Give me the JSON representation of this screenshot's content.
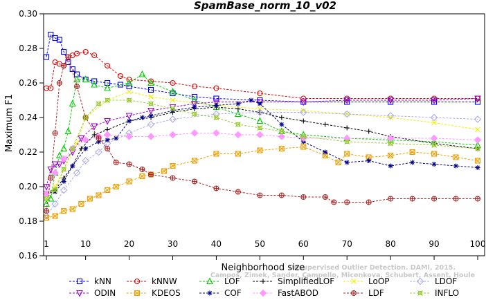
{
  "chart_data": {
    "type": "line",
    "title": "SpamBase_norm_10_v02",
    "xlabel": "Neighborhood size",
    "ylabel": "Maximum F1",
    "xlim": [
      1,
      100
    ],
    "ylim": [
      0.16,
      0.3
    ],
    "xticks": [
      1,
      10,
      20,
      30,
      40,
      50,
      60,
      70,
      80,
      90,
      100
    ],
    "yticks": [
      0.16,
      0.18,
      0.2,
      0.22,
      0.24,
      0.26,
      0.28,
      0.3
    ],
    "ytick_labels": [
      "0.16",
      "0.18",
      "0.20",
      "0.22",
      "0.24",
      "0.26",
      "0.28",
      "0.30"
    ],
    "grid": false,
    "legend_position": "bottom",
    "watermark": [
      "Campos, Zimek, Sander, Campello, Micenkova, Schubert, Assent, Houle",
      "Unsupervised Outlier Detection. DAMI, 2015."
    ],
    "series": [
      {
        "name": "kNN",
        "color": "#0000ee",
        "marker": "square",
        "x": [
          1,
          2,
          3,
          4,
          5,
          6,
          7,
          8,
          10,
          12,
          15,
          18,
          20,
          25,
          30,
          35,
          40,
          50,
          60,
          70,
          80,
          90,
          100
        ],
        "values": [
          0.275,
          0.288,
          0.286,
          0.285,
          0.278,
          0.272,
          0.268,
          0.265,
          0.262,
          0.261,
          0.26,
          0.259,
          0.258,
          0.256,
          0.254,
          0.252,
          0.251,
          0.25,
          0.249,
          0.249,
          0.249,
          0.249,
          0.249
        ]
      },
      {
        "name": "kNNW",
        "color": "#dd0000",
        "marker": "circle",
        "x": [
          1,
          2,
          3,
          4,
          5,
          6,
          7,
          8,
          10,
          12,
          15,
          18,
          20,
          25,
          30,
          35,
          40,
          50,
          60,
          70,
          80,
          90,
          100
        ],
        "values": [
          0.257,
          0.257,
          0.272,
          0.271,
          0.27,
          0.275,
          0.276,
          0.277,
          0.278,
          0.276,
          0.27,
          0.264,
          0.262,
          0.261,
          0.26,
          0.258,
          0.257,
          0.254,
          0.251,
          0.251,
          0.251,
          0.251,
          0.251
        ]
      },
      {
        "name": "LOF",
        "color": "#00cc00",
        "marker": "triangle",
        "x": [
          1,
          2,
          3,
          4,
          5,
          6,
          7,
          8,
          10,
          12,
          15,
          20,
          23,
          25,
          30,
          35,
          40,
          45,
          50,
          55,
          60,
          70,
          80,
          90,
          100
        ],
        "values": [
          0.19,
          0.193,
          0.208,
          0.218,
          0.222,
          0.232,
          0.248,
          0.262,
          0.262,
          0.259,
          0.257,
          0.26,
          0.265,
          0.26,
          0.255,
          0.25,
          0.246,
          0.242,
          0.238,
          0.232,
          0.23,
          0.228,
          0.227,
          0.226,
          0.224
        ]
      },
      {
        "name": "SimplifiedLOF",
        "color": "#000000",
        "marker": "plus",
        "x": [
          1,
          3,
          5,
          7,
          9,
          12,
          15,
          20,
          25,
          30,
          35,
          40,
          45,
          50,
          55,
          60,
          65,
          70,
          75,
          80,
          90,
          100
        ],
        "values": [
          0.197,
          0.198,
          0.205,
          0.212,
          0.222,
          0.23,
          0.233,
          0.238,
          0.24,
          0.243,
          0.245,
          0.246,
          0.245,
          0.243,
          0.24,
          0.238,
          0.236,
          0.234,
          0.232,
          0.229,
          0.225,
          0.222
        ]
      },
      {
        "name": "LoOP",
        "color": "#f0f000",
        "marker": "x",
        "x": [
          1,
          3,
          5,
          8,
          10,
          15,
          20,
          25,
          30,
          40,
          50,
          60,
          70,
          80,
          90,
          100
        ],
        "values": [
          0.195,
          0.2,
          0.21,
          0.225,
          0.24,
          0.25,
          0.255,
          0.252,
          0.25,
          0.247,
          0.245,
          0.244,
          0.242,
          0.24,
          0.237,
          0.233
        ]
      },
      {
        "name": "LDOF",
        "color": "#aaaaee",
        "marker": "diamond",
        "x": [
          1,
          3,
          5,
          8,
          10,
          13,
          15,
          20,
          25,
          30,
          40,
          50,
          60,
          70,
          80,
          90,
          100
        ],
        "values": [
          0.183,
          0.19,
          0.198,
          0.208,
          0.215,
          0.22,
          0.225,
          0.231,
          0.236,
          0.239,
          0.242,
          0.243,
          0.243,
          0.242,
          0.241,
          0.24,
          0.239
        ]
      },
      {
        "name": "ODIN",
        "color": "#9900cc",
        "marker": "triangle-down",
        "x": [
          1,
          2,
          3,
          4,
          5,
          7,
          9,
          12,
          15,
          20,
          25,
          30,
          35,
          40,
          50,
          60,
          70,
          80,
          90,
          100
        ],
        "values": [
          0.2,
          0.21,
          0.213,
          0.213,
          0.215,
          0.22,
          0.228,
          0.235,
          0.238,
          0.241,
          0.244,
          0.246,
          0.248,
          0.249,
          0.249,
          0.249,
          0.25,
          0.25,
          0.25,
          0.251
        ]
      },
      {
        "name": "KDEOS",
        "color": "#f0a000",
        "marker": "square-x",
        "x": [
          1,
          3,
          5,
          7,
          9,
          11,
          13,
          15,
          17,
          20,
          23,
          25,
          28,
          30,
          35,
          40,
          45,
          50,
          55,
          60,
          65,
          68,
          70,
          75,
          80,
          85,
          90,
          95,
          100
        ],
        "values": [
          0.182,
          0.183,
          0.186,
          0.187,
          0.19,
          0.193,
          0.195,
          0.198,
          0.2,
          0.203,
          0.206,
          0.207,
          0.209,
          0.212,
          0.215,
          0.219,
          0.219,
          0.221,
          0.222,
          0.223,
          0.218,
          0.214,
          0.219,
          0.217,
          0.218,
          0.22,
          0.219,
          0.217,
          0.215
        ]
      },
      {
        "name": "COF",
        "color": "#000088",
        "marker": "asterisk",
        "x": [
          1,
          3,
          5,
          7,
          10,
          13,
          15,
          17,
          20,
          23,
          25,
          30,
          35,
          40,
          45,
          48,
          50,
          55,
          60,
          65,
          70,
          75,
          80,
          85,
          90,
          95,
          100
        ],
        "values": [
          0.196,
          0.197,
          0.203,
          0.212,
          0.222,
          0.226,
          0.227,
          0.228,
          0.238,
          0.24,
          0.241,
          0.244,
          0.246,
          0.247,
          0.248,
          0.25,
          0.248,
          0.236,
          0.226,
          0.22,
          0.214,
          0.215,
          0.212,
          0.214,
          0.213,
          0.212,
          0.211
        ]
      },
      {
        "name": "FastABOD",
        "color": "#ff99ff",
        "marker": "diamond-filled",
        "x": [
          1,
          3,
          5,
          7,
          10,
          13,
          15,
          20,
          25,
          30,
          35,
          40,
          45,
          50,
          55,
          60,
          70,
          80,
          90,
          100
        ],
        "values": [
          0.196,
          0.208,
          0.216,
          0.222,
          0.227,
          0.229,
          0.23,
          0.229,
          0.229,
          0.23,
          0.231,
          0.231,
          0.23,
          0.23,
          0.229,
          0.228,
          0.228,
          0.228,
          0.228,
          0.227
        ]
      },
      {
        "name": "LDF",
        "color": "#aa2222",
        "marker": "circle-plus",
        "x": [
          1,
          2,
          3,
          4,
          5,
          6,
          8,
          10,
          13,
          15,
          17,
          20,
          23,
          25,
          30,
          35,
          40,
          45,
          50,
          55,
          60,
          65,
          67,
          70,
          75,
          80,
          85,
          90,
          95,
          100
        ],
        "values": [
          0.186,
          0.205,
          0.231,
          0.26,
          0.27,
          0.275,
          0.258,
          0.24,
          0.228,
          0.222,
          0.214,
          0.213,
          0.21,
          0.207,
          0.205,
          0.203,
          0.199,
          0.197,
          0.195,
          0.195,
          0.194,
          0.194,
          0.191,
          0.191,
          0.191,
          0.193,
          0.193,
          0.193,
          0.193,
          0.193
        ]
      },
      {
        "name": "INFLO",
        "color": "#99cc33",
        "marker": "x-square",
        "x": [
          1,
          3,
          5,
          7,
          10,
          13,
          15,
          20,
          25,
          30,
          35,
          40,
          45,
          50,
          55,
          60,
          70,
          80,
          90,
          100
        ],
        "values": [
          0.193,
          0.198,
          0.21,
          0.222,
          0.24,
          0.248,
          0.25,
          0.25,
          0.248,
          0.245,
          0.242,
          0.24,
          0.236,
          0.234,
          0.232,
          0.229,
          0.226,
          0.225,
          0.224,
          0.222
        ]
      }
    ]
  }
}
